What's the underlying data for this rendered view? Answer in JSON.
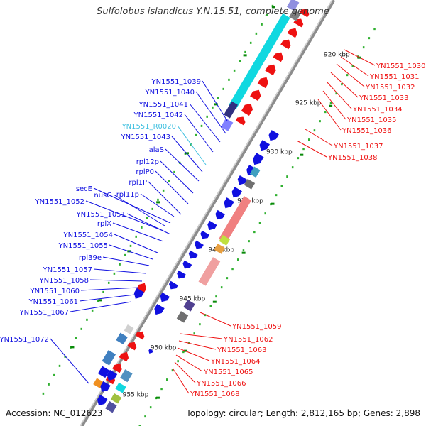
{
  "title": "Sulfolobus islandicus Y.N.15.51, complete genome",
  "accession": "Accession: NC_012623",
  "summary": "Topology: circular; Length: 2,812,165 bp; Genes: 2,898",
  "colors": {
    "blue": "#1010e0",
    "red": "#ee1111",
    "cyan": "#10d8e0",
    "rna_label": "#40c0e0",
    "backbone": "#909090",
    "tick_major": "#0a8a0a",
    "tick_minor": "#30b030"
  },
  "scale_labels": [
    "920 kbp",
    "925 kbp",
    "930 kbp",
    "935 kbp",
    "940 kbp",
    "945 kbp",
    "950 kbp",
    "955 kbp"
  ],
  "left_labels": [
    {
      "text": "YN1551_1039",
      "color": "blue"
    },
    {
      "text": "YN1551_1040",
      "color": "blue"
    },
    {
      "text": "YN1551_1041",
      "color": "blue"
    },
    {
      "text": "YN1551_1042",
      "color": "blue"
    },
    {
      "text": "YN1551_R0020",
      "color": "rna_label"
    },
    {
      "text": "YN1551_1043",
      "color": "blue"
    },
    {
      "text": "alaS",
      "color": "blue"
    },
    {
      "text": "rpl12p",
      "color": "blue"
    },
    {
      "text": "rplP0",
      "color": "blue"
    },
    {
      "text": "rpl1P",
      "color": "blue"
    },
    {
      "text": "secE",
      "color": "blue"
    },
    {
      "text": "nusG",
      "color": "blue"
    },
    {
      "text": "rpl11p",
      "color": "blue"
    },
    {
      "text": "YN1551_1052",
      "color": "blue"
    },
    {
      "text": "YN1551_1051",
      "color": "blue"
    },
    {
      "text": "rplX",
      "color": "blue"
    },
    {
      "text": "YN1551_1054",
      "color": "blue"
    },
    {
      "text": "YN1551_1055",
      "color": "blue"
    },
    {
      "text": "rpl39e",
      "color": "blue"
    },
    {
      "text": "YN1551_1057",
      "color": "blue"
    },
    {
      "text": "YN1551_1058",
      "color": "blue"
    },
    {
      "text": "YN1551_1060",
      "color": "blue"
    },
    {
      "text": "YN1551_1061",
      "color": "blue"
    },
    {
      "text": "YN1551_1067",
      "color": "blue"
    },
    {
      "text": "YN1551_1072",
      "color": "blue"
    }
  ],
  "right_labels": [
    {
      "text": "YN1551_1030",
      "color": "red"
    },
    {
      "text": "YN1551_1031",
      "color": "red"
    },
    {
      "text": "YN1551_1032",
      "color": "red"
    },
    {
      "text": "YN1551_1033",
      "color": "red"
    },
    {
      "text": "YN1551_1034",
      "color": "red"
    },
    {
      "text": "YN1551_1035",
      "color": "red"
    },
    {
      "text": "YN1551_1036",
      "color": "red"
    },
    {
      "text": "YN1551_1037",
      "color": "red"
    },
    {
      "text": "YN1551_1038",
      "color": "red"
    },
    {
      "text": "YN1551_1059",
      "color": "red"
    },
    {
      "text": "YN1551_1062",
      "color": "red"
    },
    {
      "text": "YN1551_1063",
      "color": "red"
    },
    {
      "text": "YN1551_1064",
      "color": "red"
    },
    {
      "text": "YN1551_1065",
      "color": "red"
    },
    {
      "text": "YN1551_1066",
      "color": "red"
    },
    {
      "text": "YN1551_1068",
      "color": "red"
    }
  ]
}
